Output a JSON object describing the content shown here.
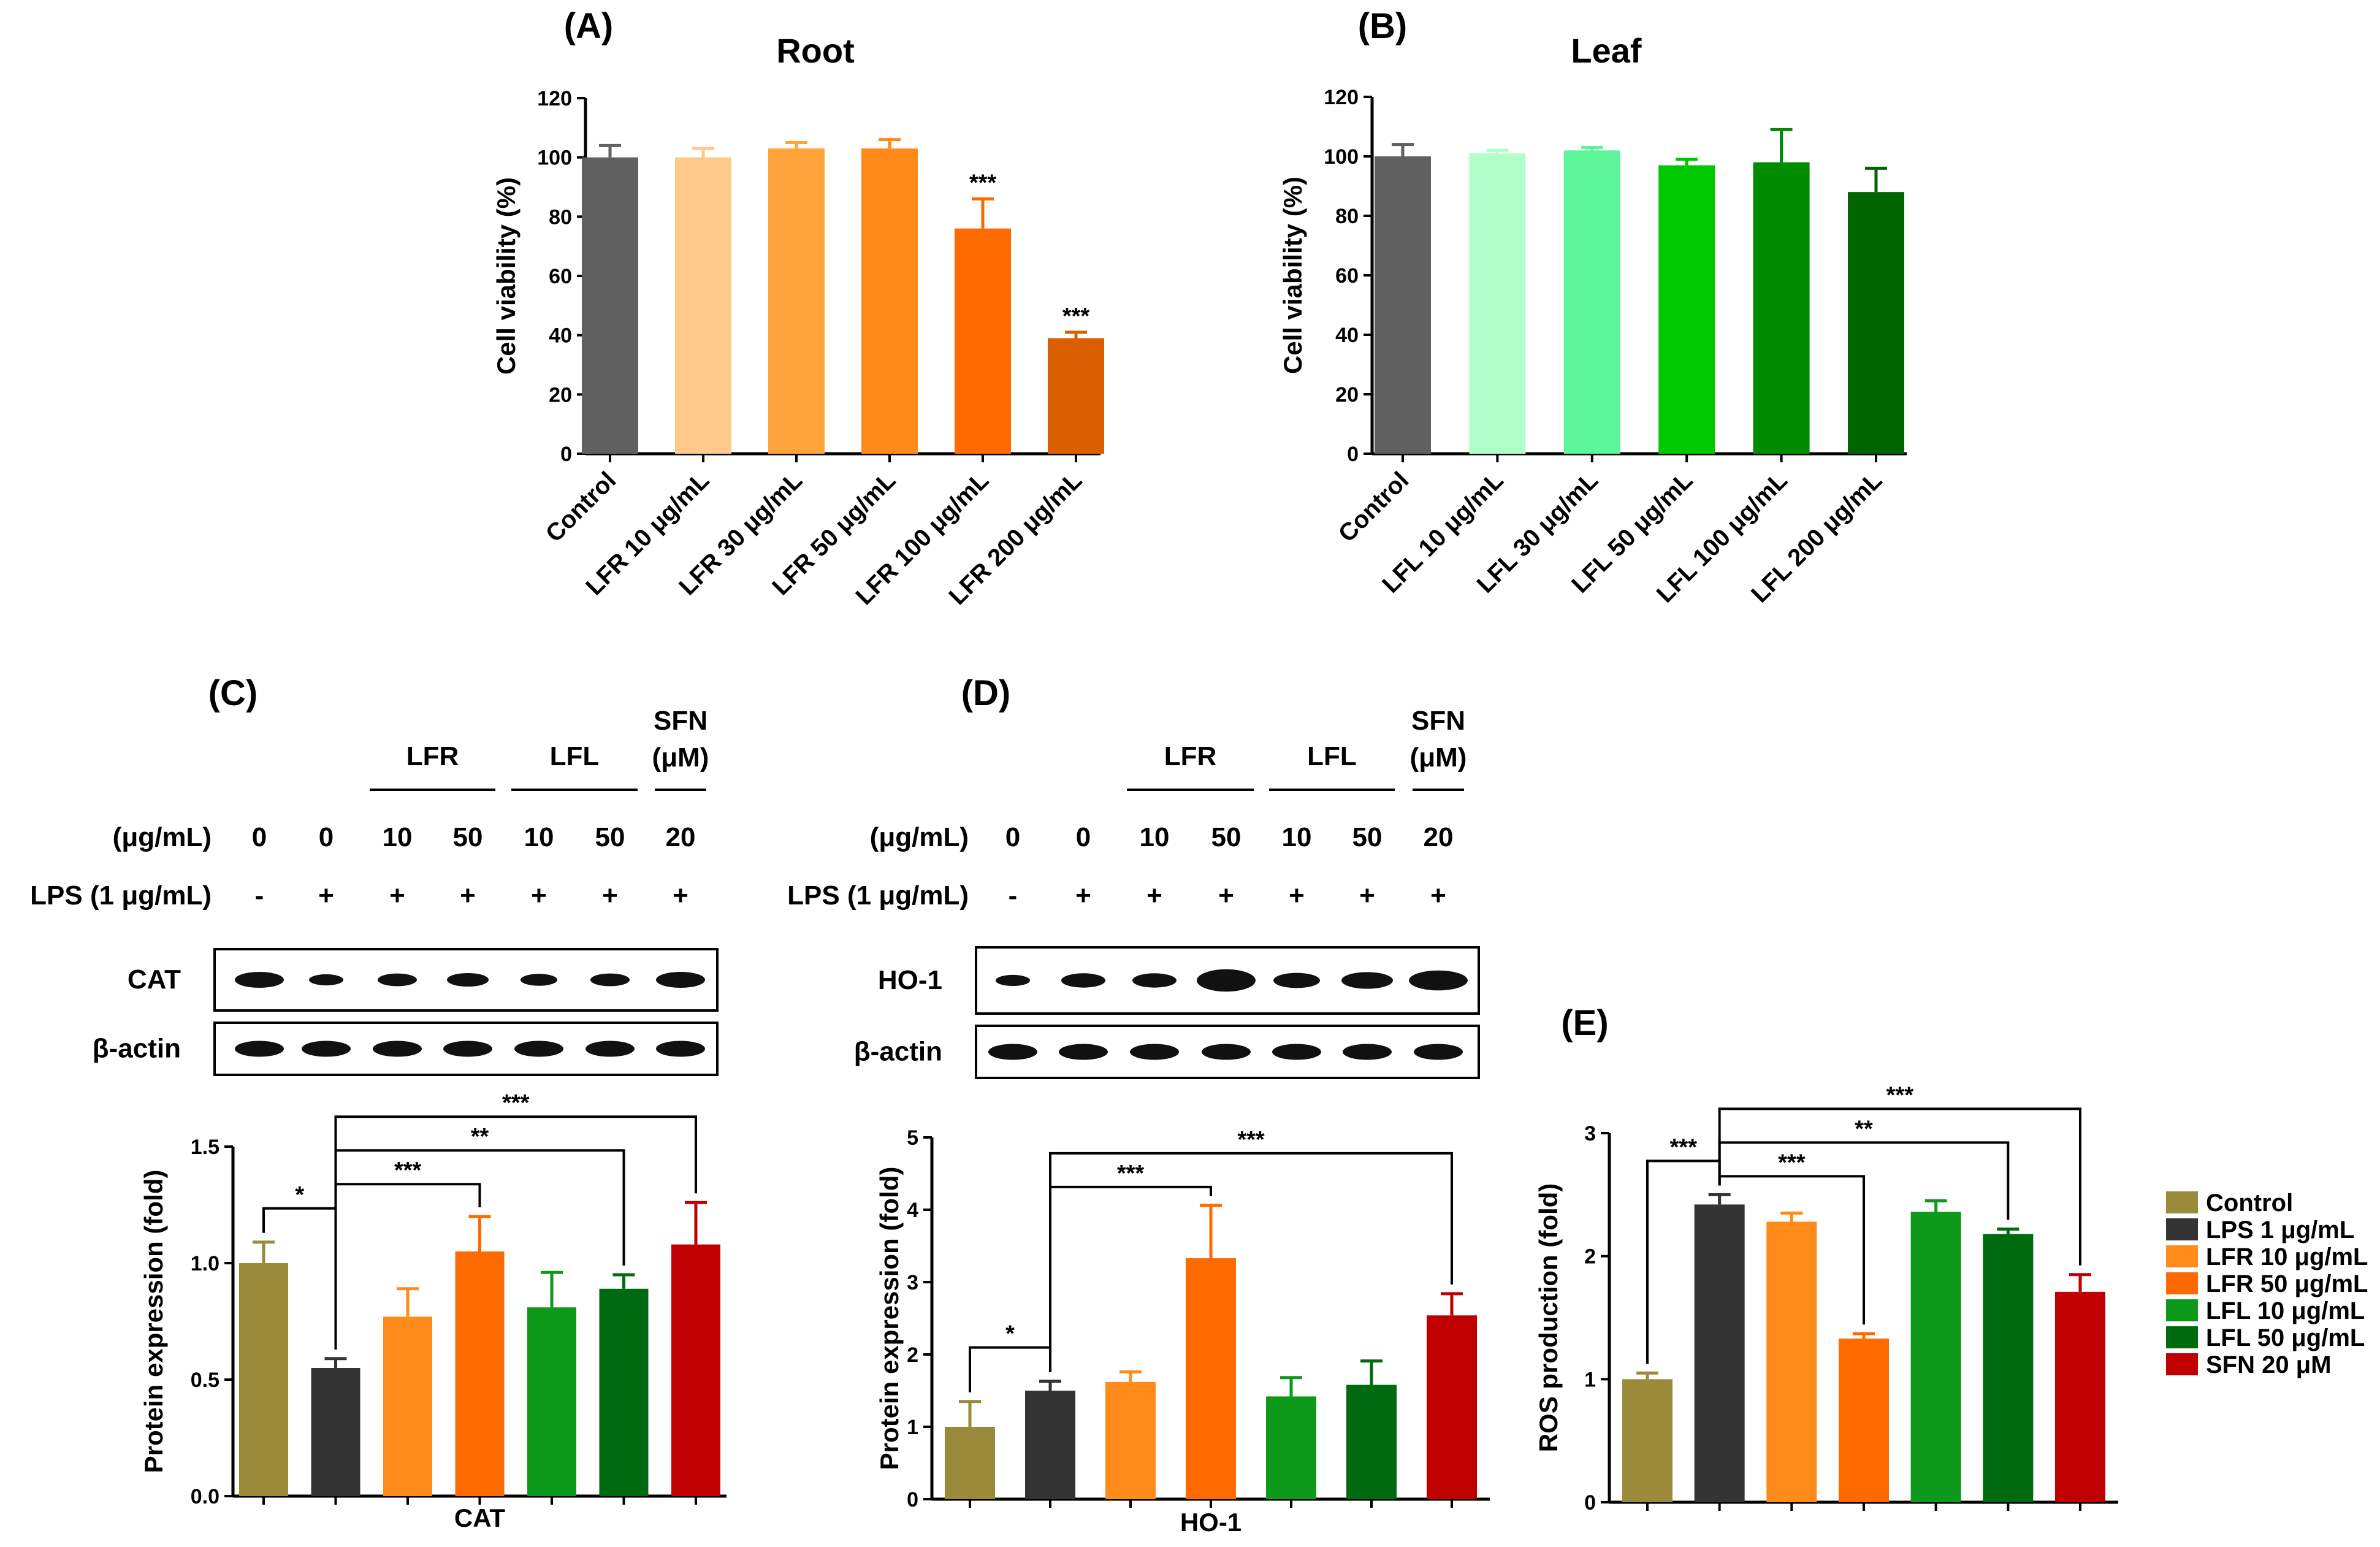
{
  "chart_data": [
    {
      "id": "A",
      "type": "bar",
      "panel_label": "(A)",
      "title": "Root",
      "ylabel": "Cell viability (%)",
      "ylim": [
        0,
        120
      ],
      "yticks": [
        0,
        20,
        40,
        60,
        80,
        100,
        120
      ],
      "categories": [
        "Control",
        "LFR 10 μg/mL",
        "LFR 30 μg/mL",
        "LFR 50 μg/mL",
        "LFR 100 μg/mL",
        "LFR 200 μg/mL"
      ],
      "values": [
        100,
        100,
        103,
        103,
        76,
        39
      ],
      "errors": [
        4,
        3,
        2,
        3,
        10,
        2
      ],
      "annotations": [
        "",
        "",
        "",
        "",
        "***",
        "***"
      ],
      "colors": [
        "#606060",
        "#FFC98A",
        "#FFA43A",
        "#FF8A1A",
        "#FF6A00",
        "#D95F00"
      ]
    },
    {
      "id": "B",
      "type": "bar",
      "panel_label": "(B)",
      "title": "Leaf",
      "ylabel": "Cell viability (%)",
      "ylim": [
        0,
        120
      ],
      "yticks": [
        0,
        20,
        40,
        60,
        80,
        100,
        120
      ],
      "categories": [
        "Control",
        "LFL 10 μg/mL",
        "LFL 30 μg/mL",
        "LFL 50 μg/mL",
        "LFL 100 μg/mL",
        "LFL 200 μg/mL"
      ],
      "values": [
        100,
        101,
        102,
        97,
        98,
        88
      ],
      "errors": [
        4,
        1,
        1,
        2,
        11,
        8
      ],
      "annotations": [
        "",
        "",
        "",
        "",
        "",
        ""
      ],
      "colors": [
        "#606060",
        "#B0FFC8",
        "#5CF59A",
        "#00C800",
        "#008C00",
        "#006400"
      ]
    },
    {
      "id": "C",
      "type": "bar",
      "panel_label": "(C)",
      "xlabel": "CAT",
      "ylabel": "Protein expression (fold)",
      "ylim": [
        0,
        1.5
      ],
      "yticks": [
        "0.0",
        "0.5",
        "1.0",
        "1.5"
      ],
      "values": [
        1.0,
        0.55,
        0.77,
        1.05,
        0.81,
        0.89,
        1.08
      ],
      "errors": [
        0.09,
        0.04,
        0.12,
        0.15,
        0.15,
        0.06,
        0.18
      ],
      "colors": [
        "#9A8A3A",
        "#343434",
        "#FF8C1A",
        "#FF6A00",
        "#0D9A1A",
        "#006A10",
        "#C00000"
      ],
      "significance": [
        {
          "from": 0,
          "to": 1,
          "label": "*"
        },
        {
          "from": 1,
          "to": 3,
          "label": "***"
        },
        {
          "from": 1,
          "to": 5,
          "label": "**"
        },
        {
          "from": 1,
          "to": 6,
          "label": "***"
        }
      ]
    },
    {
      "id": "D",
      "type": "bar",
      "panel_label": "(D)",
      "xlabel": "HO-1",
      "ylabel": "Protein expression (fold)",
      "ylim": [
        0,
        5
      ],
      "yticks": [
        "0",
        "1",
        "2",
        "3",
        "4",
        "5"
      ],
      "values": [
        1.0,
        1.5,
        1.62,
        3.33,
        1.42,
        1.58,
        2.54
      ],
      "errors": [
        0.35,
        0.13,
        0.14,
        0.73,
        0.26,
        0.33,
        0.3
      ],
      "colors": [
        "#9A8A3A",
        "#343434",
        "#FF8C1A",
        "#FF6A00",
        "#0D9A1A",
        "#006A10",
        "#C00000"
      ],
      "significance": [
        {
          "from": 0,
          "to": 1,
          "label": "*"
        },
        {
          "from": 1,
          "to": 3,
          "label": "***"
        },
        {
          "from": 1,
          "to": 6,
          "label": "***"
        }
      ]
    },
    {
      "id": "E",
      "type": "bar",
      "panel_label": "(E)",
      "ylabel": "ROS production (fold)",
      "ylim": [
        0,
        3
      ],
      "yticks": [
        "0",
        "1",
        "2",
        "3"
      ],
      "values": [
        1.0,
        2.42,
        2.28,
        1.33,
        2.36,
        2.18,
        1.71
      ],
      "errors": [
        0.05,
        0.08,
        0.07,
        0.04,
        0.09,
        0.04,
        0.14
      ],
      "colors": [
        "#9A8A3A",
        "#343434",
        "#FF8C1A",
        "#FF6A00",
        "#0D9A1A",
        "#006A10",
        "#C00000"
      ],
      "significance": [
        {
          "from": 0,
          "to": 1,
          "label": "***"
        },
        {
          "from": 1,
          "to": 3,
          "label": "***"
        },
        {
          "from": 1,
          "to": 5,
          "label": "**"
        },
        {
          "from": 1,
          "to": 6,
          "label": "***"
        }
      ],
      "legend": [
        {
          "label": "Control",
          "color": "#9A8A3A"
        },
        {
          "label": "LPS 1 μg/mL",
          "color": "#343434"
        },
        {
          "label": "LFR 10 μg/mL",
          "color": "#FF8C1A"
        },
        {
          "label": "LFR 50 μg/mL",
          "color": "#FF6A00"
        },
        {
          "label": "LFL 10 μg/mL",
          "color": "#0D9A1A"
        },
        {
          "label": "LFL 50 μg/mL",
          "color": "#006A10"
        },
        {
          "label": "SFN 20 μM",
          "color": "#C00000"
        }
      ]
    }
  ],
  "blots": [
    {
      "panel": "C",
      "group_labels": [
        "LFR",
        "LFL"
      ],
      "sfn_label": [
        "SFN",
        "(μM)"
      ],
      "dose_row_label": "(μg/mL)",
      "doses": [
        "0",
        "0",
        "10",
        "50",
        "10",
        "50",
        "20"
      ],
      "lps_row_label": "LPS (1 μg/mL)",
      "lps": [
        "-",
        "+",
        "+",
        "+",
        "+",
        "+",
        "+"
      ],
      "band_labels": [
        "CAT",
        "β-actin"
      ]
    },
    {
      "panel": "D",
      "group_labels": [
        "LFR",
        "LFL"
      ],
      "sfn_label": [
        "SFN",
        "(μM)"
      ],
      "dose_row_label": "(μg/mL)",
      "doses": [
        "0",
        "0",
        "10",
        "50",
        "10",
        "50",
        "20"
      ],
      "lps_row_label": "LPS (1 μg/mL)",
      "lps": [
        "-",
        "+",
        "+",
        "+",
        "+",
        "+",
        "+"
      ],
      "band_labels": [
        "HO-1",
        "β-actin"
      ]
    }
  ]
}
